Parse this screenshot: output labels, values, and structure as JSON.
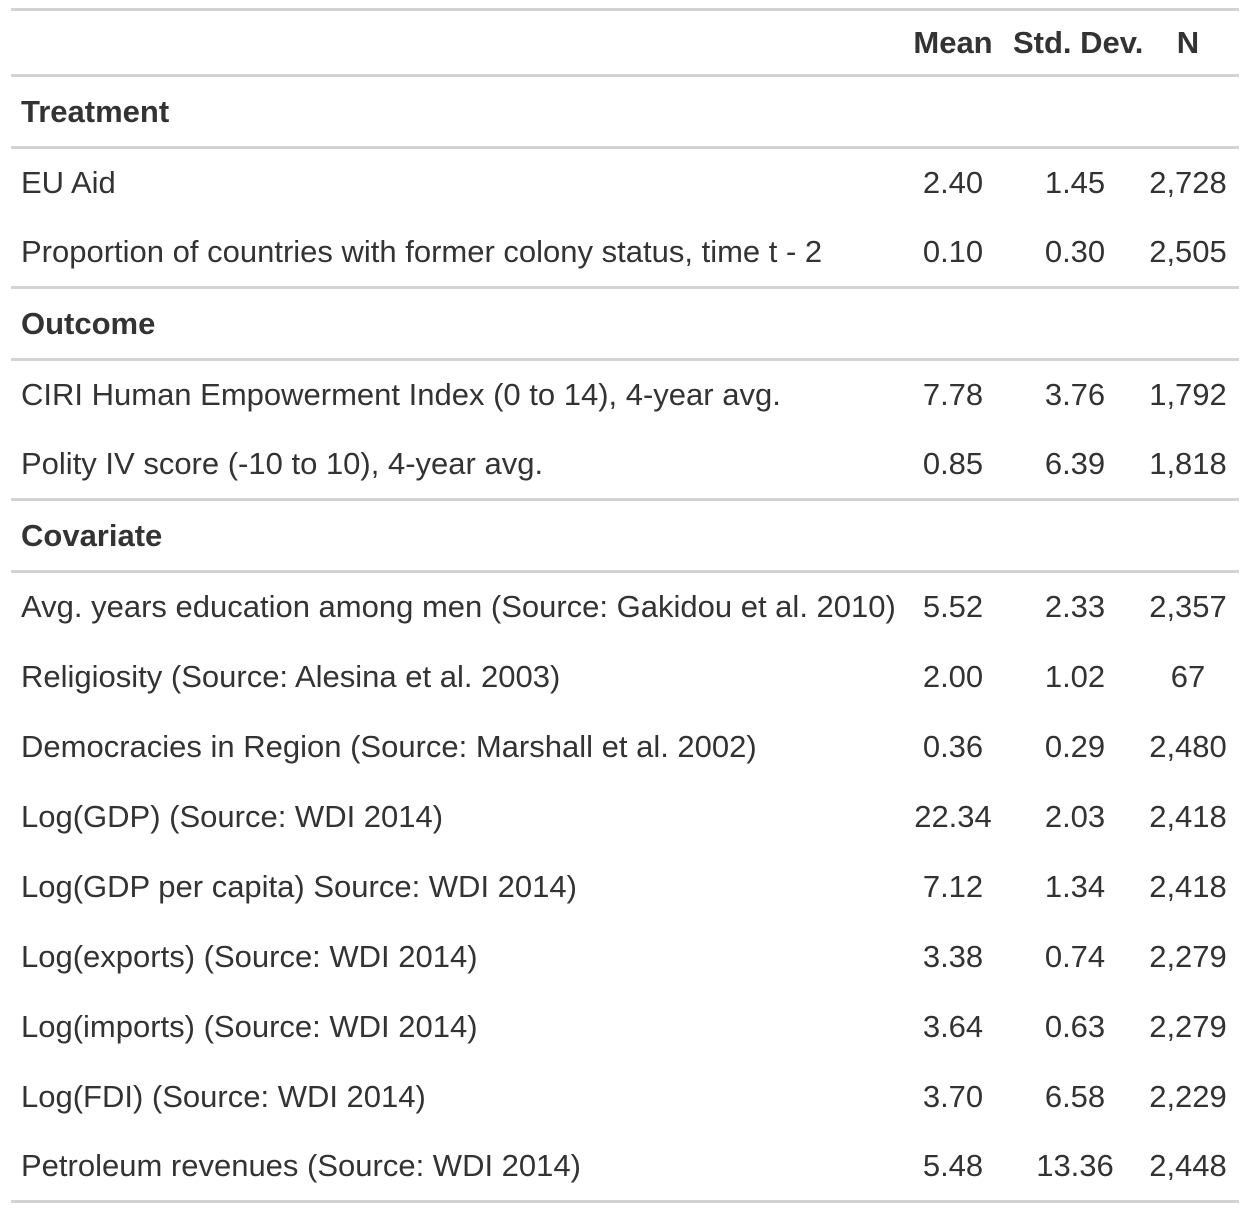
{
  "headers": {
    "label": "",
    "mean": "Mean",
    "sd": "Std. Dev.",
    "n": "N"
  },
  "groups": [
    {
      "title": "Treatment",
      "rows": [
        {
          "label": "EU Aid",
          "mean": "2.40",
          "sd": "1.45",
          "n": "2,728"
        },
        {
          "label": "Proportion of countries with former colony status, time t - 2",
          "mean": "0.10",
          "sd": "0.30",
          "n": "2,505"
        }
      ]
    },
    {
      "title": "Outcome",
      "rows": [
        {
          "label": "CIRI Human Empowerment Index (0 to 14), 4-year avg.",
          "mean": "7.78",
          "sd": "3.76",
          "n": "1,792"
        },
        {
          "label": "Polity IV score (-10 to 10), 4-year avg.",
          "mean": "0.85",
          "sd": "6.39",
          "n": "1,818"
        }
      ]
    },
    {
      "title": "Covariate",
      "rows": [
        {
          "label": "Avg. years education among men (Source: Gakidou et al. 2010)",
          "mean": "5.52",
          "sd": "2.33",
          "n": "2,357"
        },
        {
          "label": "Religiosity (Source: Alesina et al. 2003)",
          "mean": "2.00",
          "sd": "1.02",
          "n": "67"
        },
        {
          "label": "Democracies in Region (Source: Marshall et al. 2002)",
          "mean": "0.36",
          "sd": "0.29",
          "n": "2,480"
        },
        {
          "label": "Log(GDP) (Source: WDI 2014)",
          "mean": "22.34",
          "sd": "2.03",
          "n": "2,418"
        },
        {
          "label": "Log(GDP per capita) Source: WDI 2014)",
          "mean": "7.12",
          "sd": "1.34",
          "n": "2,418"
        },
        {
          "label": "Log(exports) (Source: WDI 2014)",
          "mean": "3.38",
          "sd": "0.74",
          "n": "2,279"
        },
        {
          "label": "Log(imports) (Source: WDI 2014)",
          "mean": "3.64",
          "sd": "0.63",
          "n": "2,279"
        },
        {
          "label": "Log(FDI) (Source: WDI 2014)",
          "mean": "3.70",
          "sd": "6.58",
          "n": "2,229"
        },
        {
          "label": "Petroleum revenues (Source: WDI 2014)",
          "mean": "5.48",
          "sd": "13.36",
          "n": "2,448"
        }
      ]
    }
  ]
}
